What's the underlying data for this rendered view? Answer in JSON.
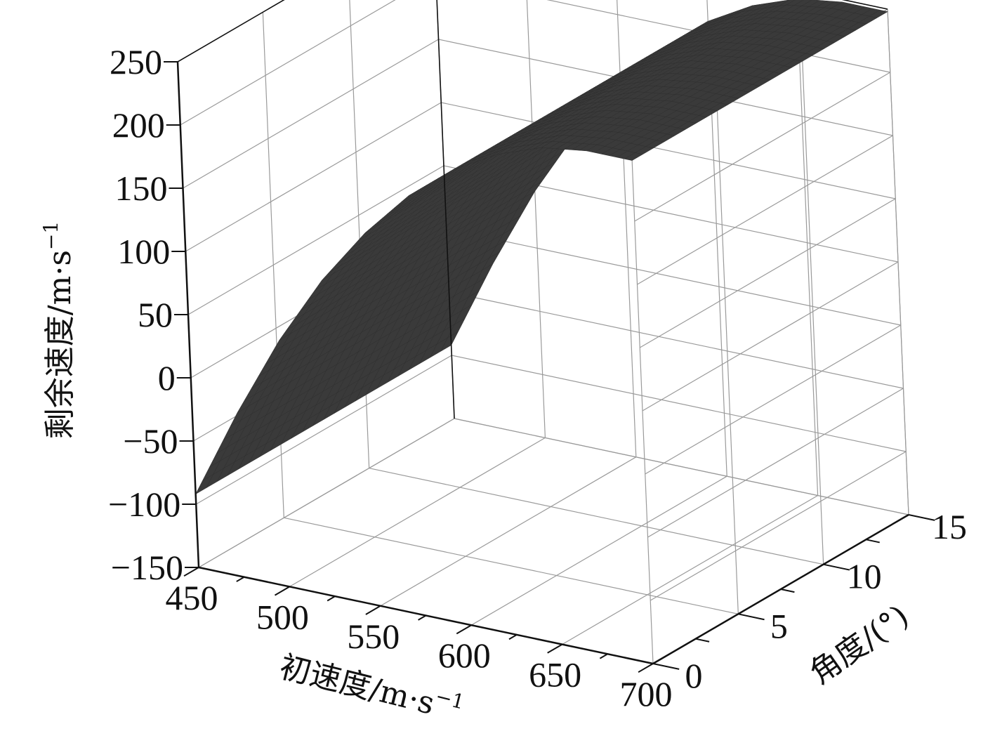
{
  "chart_data": {
    "type": "surface",
    "title": "",
    "xlabel": "初速度/m·s",
    "xlabel_sup": "−1",
    "ylabel": "角度/(°)",
    "zlabel": "剩余速度/m·s",
    "zlabel_sup": "−1",
    "x_ticks": [
      "450",
      "500",
      "550",
      "600",
      "650",
      "700"
    ],
    "y_ticks": [
      "0",
      "5",
      "10",
      "15"
    ],
    "z_ticks": [
      "250",
      "200",
      "150",
      "100",
      "50",
      "0",
      "−50",
      "−100",
      "−150"
    ],
    "xlim": [
      450,
      700
    ],
    "ylim": [
      0,
      15
    ],
    "zlim": [
      -150,
      250
    ],
    "grid": true,
    "surface_color": "#3a3a3a",
    "surface_edge_color": "#2e2e2e",
    "surface_profile": {
      "x": [
        450,
        475,
        500,
        525,
        550,
        575,
        600,
        625,
        650,
        675,
        700
      ],
      "z": [
        -92,
        -20,
        45,
        100,
        145,
        182,
        210,
        230,
        243,
        248,
        248
      ]
    }
  }
}
